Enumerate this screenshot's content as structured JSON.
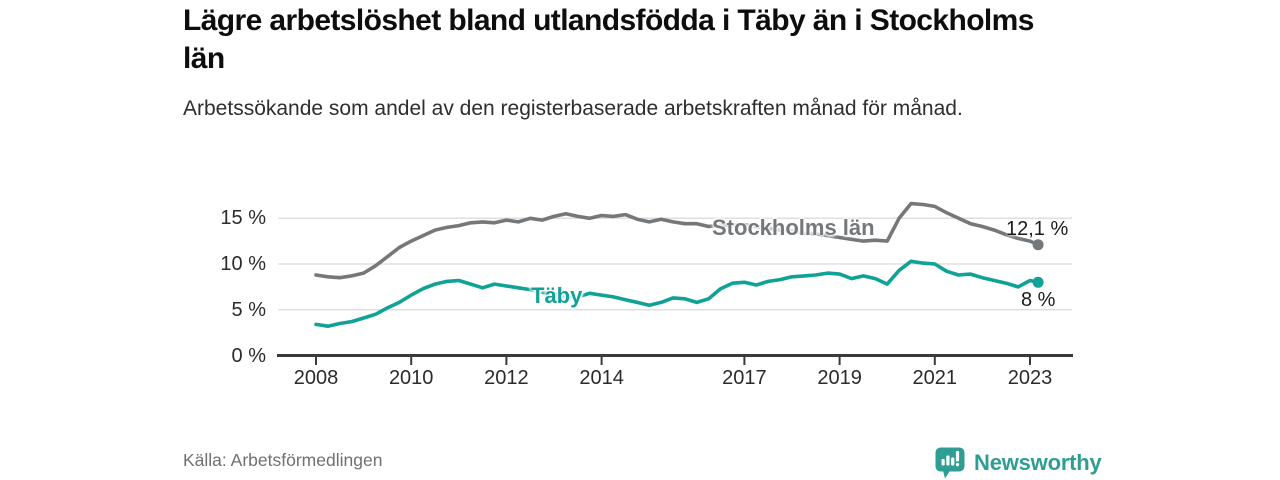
{
  "header": {
    "title": "Lägre arbetslöshet bland utlandsfödda i Täby än i Stockholms län",
    "subtitle": "Arbetssökande som andel av den registerbaserade arbetskraften månad för månad."
  },
  "footer": {
    "source": "Källa: Arbetsförmedlingen",
    "brand": "Newsworthy"
  },
  "colors": {
    "stockholm_line": "#75787b",
    "taby_line": "#10a296",
    "brand_teal": "#2f9d92",
    "gridline": "#d9d9d9",
    "axis": "#3a3a3a",
    "end_label_text": "#1a1a1a"
  },
  "chart_data": {
    "type": "line",
    "title": "Lägre arbetslöshet bland utlandsfödda i Täby än i Stockholms län",
    "subtitle": "Arbetssökande som andel av den registerbaserade arbetskraften månad för månad.",
    "ylabel": "",
    "xlabel": "",
    "grid": "horizontal",
    "x_axis": {
      "tick_years": [
        2008,
        2010,
        2012,
        2014,
        2017,
        2019,
        2021,
        2023
      ],
      "tick_labels": [
        "2008",
        "2010",
        "2012",
        "2014",
        "2017",
        "2019",
        "2021",
        "2023"
      ]
    },
    "y_axis": {
      "tick_values": [
        0,
        5,
        10,
        15
      ],
      "tick_labels": [
        "0 %",
        "5 %",
        "10 %",
        "15 %"
      ],
      "range": [
        0,
        17.5
      ]
    },
    "x": [
      2008.0,
      2008.25,
      2008.5,
      2008.75,
      2009.0,
      2009.25,
      2009.5,
      2009.75,
      2010.0,
      2010.25,
      2010.5,
      2010.75,
      2011.0,
      2011.25,
      2011.5,
      2011.75,
      2012.0,
      2012.25,
      2012.5,
      2012.75,
      2013.0,
      2013.25,
      2013.5,
      2013.75,
      2014.0,
      2014.25,
      2014.5,
      2014.75,
      2015.0,
      2015.25,
      2015.5,
      2015.75,
      2016.0,
      2016.25,
      2016.5,
      2016.75,
      2017.0,
      2017.25,
      2017.5,
      2017.75,
      2018.0,
      2018.25,
      2018.5,
      2018.75,
      2019.0,
      2019.25,
      2019.5,
      2019.75,
      2020.0,
      2020.25,
      2020.5,
      2020.75,
      2021.0,
      2021.25,
      2021.5,
      2021.75,
      2022.0,
      2022.25,
      2022.5,
      2022.75,
      2023.0,
      2023.17
    ],
    "series": [
      {
        "name": "Stockholms län",
        "color": "#75787b",
        "end_label": "12,1 %",
        "end_value": 12.1,
        "values": [
          8.8,
          8.6,
          8.5,
          8.7,
          9.0,
          9.8,
          10.8,
          11.8,
          12.5,
          13.1,
          13.7,
          14.0,
          14.2,
          14.5,
          14.6,
          14.5,
          14.8,
          14.6,
          15.0,
          14.8,
          15.2,
          15.5,
          15.2,
          15.0,
          15.3,
          15.2,
          15.4,
          14.9,
          14.6,
          14.9,
          14.6,
          14.4,
          14.4,
          14.1,
          14.3,
          14.2,
          14.3,
          14.1,
          13.9,
          13.7,
          13.6,
          13.4,
          13.3,
          13.1,
          12.9,
          12.7,
          12.5,
          12.6,
          12.5,
          15.0,
          16.6,
          16.5,
          16.3,
          15.6,
          15.0,
          14.4,
          14.1,
          13.7,
          13.2,
          12.8,
          12.5,
          12.1
        ]
      },
      {
        "name": "Täby",
        "color": "#10a296",
        "end_label": "8 %",
        "end_value": 8.0,
        "values": [
          3.4,
          3.2,
          3.5,
          3.7,
          4.1,
          4.5,
          5.2,
          5.8,
          6.6,
          7.3,
          7.8,
          8.1,
          8.2,
          7.8,
          7.4,
          7.8,
          7.6,
          7.4,
          7.2,
          6.9,
          6.7,
          6.5,
          6.4,
          6.8,
          6.6,
          6.4,
          6.1,
          5.8,
          5.5,
          5.8,
          6.3,
          6.2,
          5.8,
          6.2,
          7.3,
          7.9,
          8.0,
          7.7,
          8.1,
          8.3,
          8.6,
          8.7,
          8.8,
          9.0,
          8.9,
          8.4,
          8.7,
          8.4,
          7.8,
          9.3,
          10.3,
          10.1,
          10.0,
          9.2,
          8.8,
          8.9,
          8.5,
          8.2,
          7.9,
          7.5,
          8.2,
          8.0
        ]
      }
    ]
  }
}
